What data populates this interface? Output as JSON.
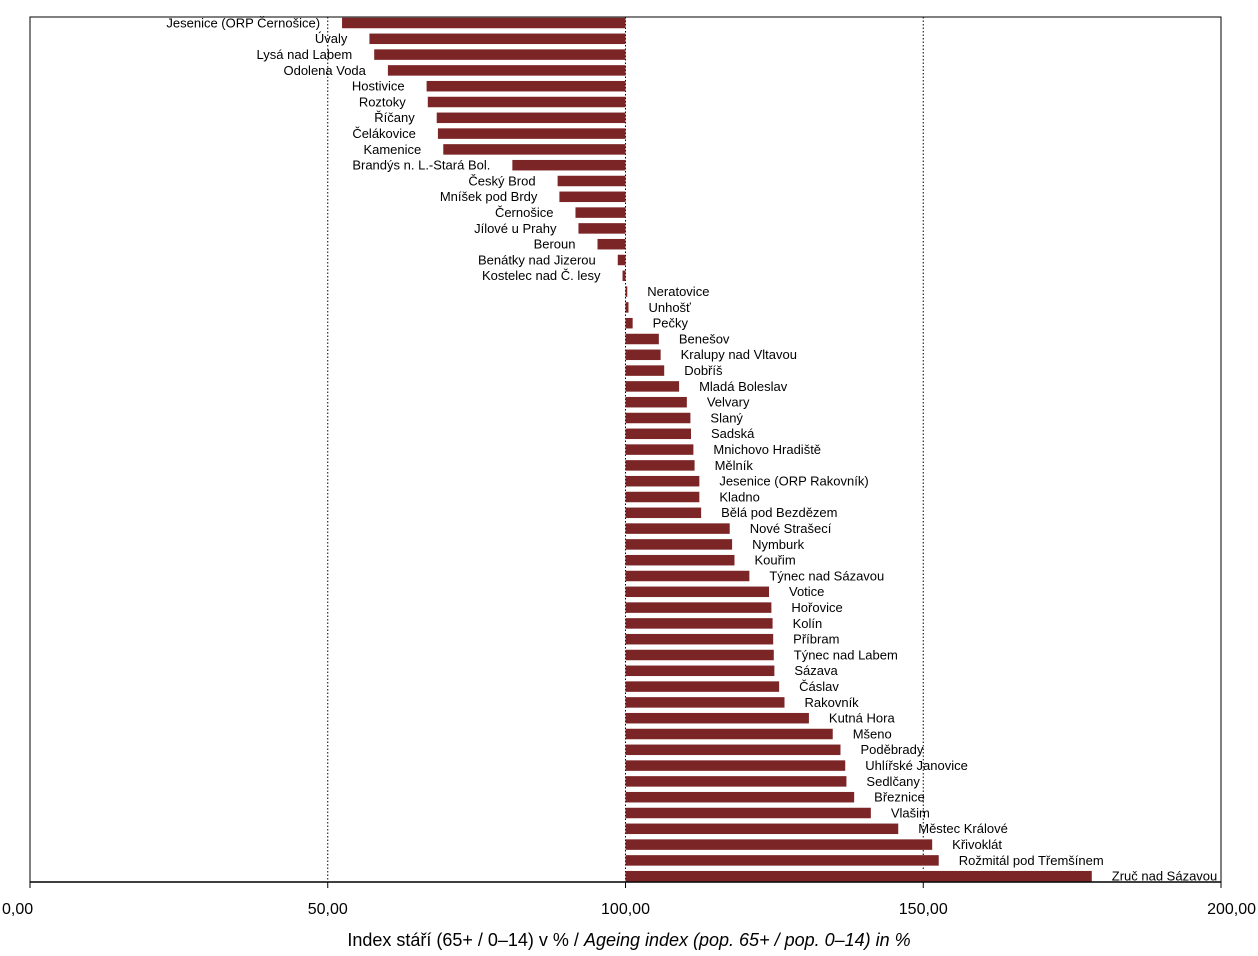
{
  "chart_data": {
    "type": "bar",
    "orientation": "horizontal",
    "reference_value": 100,
    "xlim": [
      0,
      200
    ],
    "xticks": [
      0,
      50,
      100,
      150,
      200
    ],
    "xtick_labels": [
      "0,00",
      "50,00",
      "100,00",
      "150,00",
      "200,00"
    ],
    "gridlines_at": [
      50,
      100,
      150
    ],
    "grid": "vertical dotted",
    "legend": "none",
    "bar_color": "#7b2527",
    "xlabel_cs": "Index stáří (65+ / 0–14) v % / ",
    "xlabel_en": "Ageing index (pop. 65+ / pop. 0–14) in %",
    "categories": [
      "Jesenice (ORP Černošice)",
      "Úvaly",
      "Lysá nad Labem",
      "Odolena Voda",
      "Hostivice",
      "Roztoky",
      "Říčany",
      "Čelákovice",
      "Kamenice",
      "Brandýs n. L.-Stará Bol.",
      "Český Brod",
      "Mníšek pod Brdy",
      "Černošice",
      "Jílové u Prahy",
      "Beroun",
      "Benátky nad Jizerou",
      "Kostelec nad Č. lesy",
      "Neratovice",
      "Unhošť",
      "Pečky",
      "Benešov",
      "Kralupy nad Vltavou",
      "Dobříš",
      "Mladá Boleslav",
      "Velvary",
      "Slaný",
      "Sadská",
      "Mnichovo Hradiště",
      "Mělník",
      "Jesenice (ORP Rakovník)",
      "Kladno",
      "Bělá pod Bezdězem",
      "Nové Strašecí",
      "Nymburk",
      "Kouřim",
      "Týnec nad Sázavou",
      "Votice",
      "Hořovice",
      "Kolín",
      "Příbram",
      "Týnec nad Labem",
      "Sázava",
      "Čáslav",
      "Rakovník",
      "Kutná Hora",
      "Mšeno",
      "Poděbrady",
      "Uhlířské Janovice",
      "Sedlčany",
      "Březnice",
      "Vlašim",
      "Městec Králové",
      "Křivoklát",
      "Rožmitál pod Třemšínem",
      "Zruč nad Sázavou"
    ],
    "values": [
      52.4,
      57.0,
      57.8,
      60.1,
      66.6,
      66.8,
      68.3,
      68.5,
      69.4,
      81.0,
      88.6,
      88.9,
      91.6,
      92.1,
      95.3,
      98.7,
      99.5,
      100.3,
      100.5,
      101.2,
      105.6,
      105.9,
      106.5,
      109.0,
      110.3,
      110.9,
      111.0,
      111.4,
      111.6,
      112.4,
      112.4,
      112.7,
      117.5,
      117.9,
      118.3,
      120.8,
      124.1,
      124.5,
      124.7,
      124.8,
      124.9,
      125.0,
      125.8,
      126.7,
      130.8,
      134.8,
      136.1,
      136.9,
      137.1,
      138.4,
      141.2,
      145.8,
      151.5,
      152.6,
      178.3
    ]
  }
}
